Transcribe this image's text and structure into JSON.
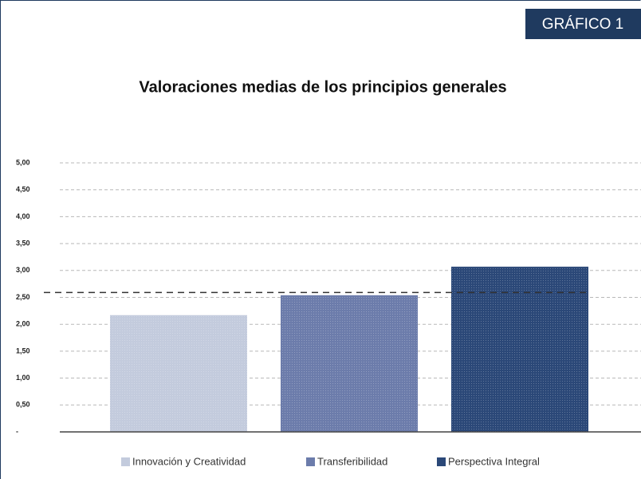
{
  "badge": "GRÁFICO 1",
  "chart_data": {
    "type": "bar",
    "title": "Valoraciones medias de los principios generales",
    "series": [
      {
        "name": "Innovación y Creatividad",
        "color": "#c3cbdd",
        "values": [
          2.17
        ]
      },
      {
        "name": "Transferibilidad",
        "color": "#6c7cab",
        "values": [
          2.54
        ]
      },
      {
        "name": "Perspectiva Integral",
        "color": "#2b4878",
        "values": [
          3.07
        ]
      }
    ],
    "reference_line": 2.59,
    "ylim": [
      0,
      5
    ],
    "yticks": [
      {
        "value": 0,
        "label": "-"
      },
      {
        "value": 0.5,
        "label": "0,50"
      },
      {
        "value": 1,
        "label": "1,00"
      },
      {
        "value": 1.5,
        "label": "1,50"
      },
      {
        "value": 2,
        "label": "2,00"
      },
      {
        "value": 2.5,
        "label": "2,50"
      },
      {
        "value": 3,
        "label": "3,00"
      },
      {
        "value": 3.5,
        "label": "3,50"
      },
      {
        "value": 4,
        "label": "4,00"
      },
      {
        "value": 4.5,
        "label": "4,50"
      },
      {
        "value": 5,
        "label": "5,00"
      }
    ],
    "grid": true,
    "legend": "bottom"
  }
}
